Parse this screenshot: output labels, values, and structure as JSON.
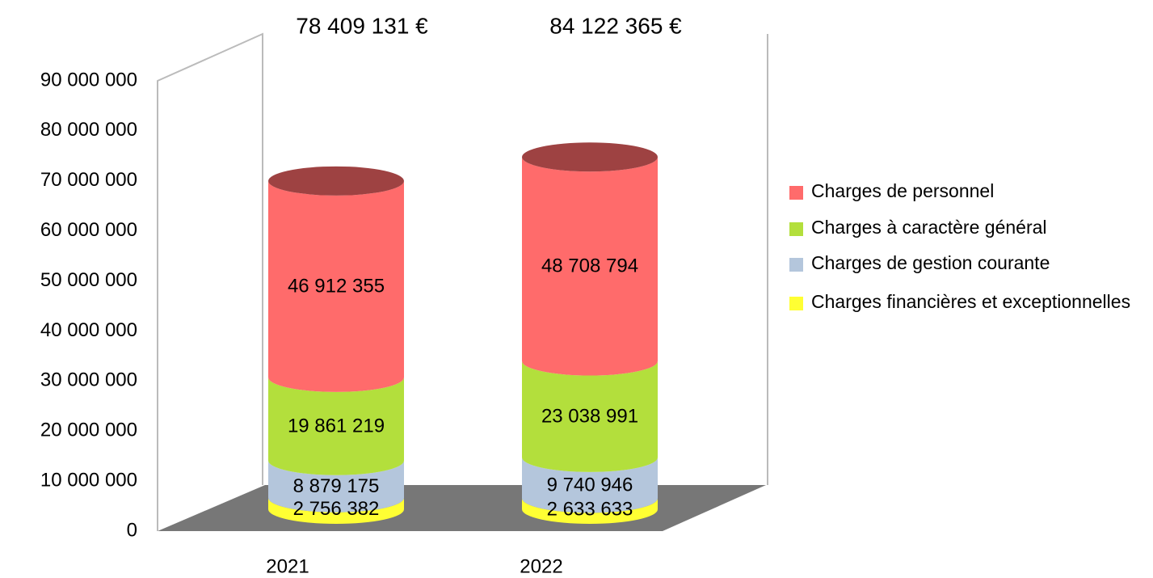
{
  "chart_data": {
    "type": "bar3d-stacked",
    "categories": [
      "2021",
      "2022"
    ],
    "annotations": [
      "78 409 131 €",
      "84 122 365 €"
    ],
    "series": [
      {
        "name": "Charges financières et exceptionnelles",
        "color": "#ffff33",
        "values": [
          2756382,
          2633633
        ],
        "value_labels": [
          "2 756 382",
          "2 633 633"
        ]
      },
      {
        "name": "Charges de gestion courante",
        "color": "#b4c6dc",
        "values": [
          8879175,
          9740946
        ],
        "value_labels": [
          "8 879 175",
          "9 740 946"
        ]
      },
      {
        "name": "Charges à caractère général",
        "color": "#b3df3c",
        "values": [
          19861219,
          23038991
        ],
        "value_labels": [
          "19 861 219",
          "23 038 991"
        ]
      },
      {
        "name": "Charges de personnel",
        "color": "#ff6b6b",
        "values": [
          46912355,
          48708794
        ],
        "value_labels": [
          "46 912 355",
          "48 708 794"
        ]
      }
    ],
    "ylim": [
      0,
      90000000
    ],
    "yticks": [
      0,
      {
        "value": 10000000,
        "label": "10 000 000"
      },
      {
        "value": 20000000,
        "label": "20 000 000"
      },
      {
        "value": 30000000,
        "label": "30 000 000"
      },
      {
        "value": 40000000,
        "label": "40 000 000"
      },
      {
        "value": 50000000,
        "label": "50 000 000"
      },
      {
        "value": 60000000,
        "label": "60 000 000"
      },
      {
        "value": 70000000,
        "label": "70 000 000"
      },
      {
        "value": 80000000,
        "label": "80 000 000"
      },
      {
        "value": 90000000,
        "label": "90 000 000"
      }
    ],
    "legend": "right"
  }
}
